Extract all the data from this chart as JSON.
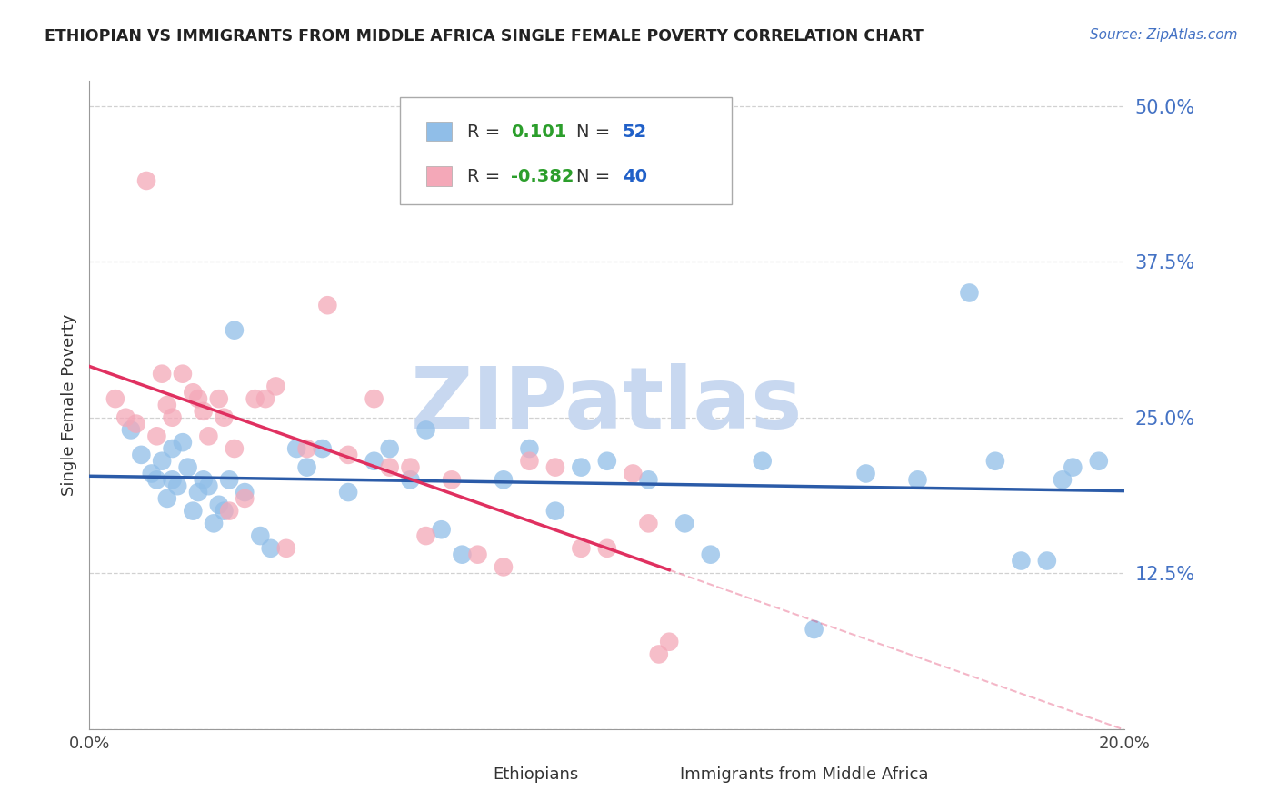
{
  "title": "ETHIOPIAN VS IMMIGRANTS FROM MIDDLE AFRICA SINGLE FEMALE POVERTY CORRELATION CHART",
  "source": "Source: ZipAtlas.com",
  "ylabel": "Single Female Poverty",
  "xlim": [
    0.0,
    0.2
  ],
  "ylim": [
    0.0,
    0.52
  ],
  "ytick_vals": [
    0.0,
    0.125,
    0.25,
    0.375,
    0.5
  ],
  "ytick_labels": [
    "",
    "12.5%",
    "25.0%",
    "37.5%",
    "50.0%"
  ],
  "xtick_vals": [
    0.0,
    0.2
  ],
  "xtick_labels": [
    "0.0%",
    "20.0%"
  ],
  "ethiopian_color": "#90BEE8",
  "middle_africa_color": "#F4A8B8",
  "line_ethiopian_color": "#2B5BA8",
  "line_middle_africa_color": "#E03060",
  "watermark": "ZIPatlas",
  "watermark_color": "#C8D8F0",
  "legend_eth_r": "0.101",
  "legend_eth_n": "52",
  "legend_mid_r": "-0.382",
  "legend_mid_n": "40",
  "r_color": "#2B9E2B",
  "n_color": "#2060C8",
  "ethiopians_x": [
    0.008,
    0.01,
    0.012,
    0.013,
    0.014,
    0.015,
    0.016,
    0.016,
    0.017,
    0.018,
    0.019,
    0.02,
    0.021,
    0.022,
    0.023,
    0.024,
    0.025,
    0.026,
    0.027,
    0.028,
    0.03,
    0.033,
    0.035,
    0.04,
    0.042,
    0.045,
    0.05,
    0.055,
    0.058,
    0.062,
    0.065,
    0.068,
    0.072,
    0.08,
    0.085,
    0.09,
    0.095,
    0.1,
    0.108,
    0.115,
    0.12,
    0.13,
    0.14,
    0.15,
    0.16,
    0.17,
    0.175,
    0.18,
    0.185,
    0.188,
    0.19,
    0.195
  ],
  "ethiopians_y": [
    0.24,
    0.22,
    0.205,
    0.2,
    0.215,
    0.185,
    0.225,
    0.2,
    0.195,
    0.23,
    0.21,
    0.175,
    0.19,
    0.2,
    0.195,
    0.165,
    0.18,
    0.175,
    0.2,
    0.32,
    0.19,
    0.155,
    0.145,
    0.225,
    0.21,
    0.225,
    0.19,
    0.215,
    0.225,
    0.2,
    0.24,
    0.16,
    0.14,
    0.2,
    0.225,
    0.175,
    0.21,
    0.215,
    0.2,
    0.165,
    0.14,
    0.215,
    0.08,
    0.205,
    0.2,
    0.35,
    0.215,
    0.135,
    0.135,
    0.2,
    0.21,
    0.215
  ],
  "middle_africa_x": [
    0.005,
    0.007,
    0.009,
    0.011,
    0.013,
    0.014,
    0.015,
    0.016,
    0.018,
    0.02,
    0.021,
    0.022,
    0.023,
    0.025,
    0.026,
    0.027,
    0.028,
    0.03,
    0.032,
    0.034,
    0.036,
    0.038,
    0.042,
    0.046,
    0.05,
    0.055,
    0.058,
    0.062,
    0.065,
    0.07,
    0.075,
    0.08,
    0.085,
    0.09,
    0.095,
    0.1,
    0.105,
    0.108,
    0.11,
    0.112
  ],
  "middle_africa_y": [
    0.265,
    0.25,
    0.245,
    0.44,
    0.235,
    0.285,
    0.26,
    0.25,
    0.285,
    0.27,
    0.265,
    0.255,
    0.235,
    0.265,
    0.25,
    0.175,
    0.225,
    0.185,
    0.265,
    0.265,
    0.275,
    0.145,
    0.225,
    0.34,
    0.22,
    0.265,
    0.21,
    0.21,
    0.155,
    0.2,
    0.14,
    0.13,
    0.215,
    0.21,
    0.145,
    0.145,
    0.205,
    0.165,
    0.06,
    0.07
  ],
  "background_color": "#FFFFFF",
  "grid_color": "#CCCCCC",
  "label_color": "#4472C4",
  "title_color": "#222222",
  "axis_color": "#999999"
}
